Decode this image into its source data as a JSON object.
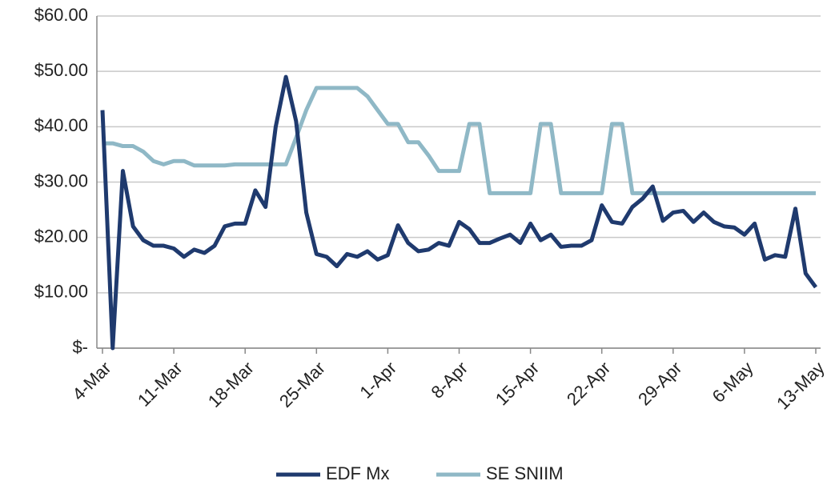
{
  "chart_data": {
    "type": "line",
    "categories": [
      "4-Mar",
      null,
      null,
      null,
      null,
      null,
      null,
      "11-Mar",
      null,
      null,
      null,
      null,
      null,
      null,
      "18-Mar",
      null,
      null,
      null,
      null,
      null,
      null,
      "25-Mar",
      null,
      null,
      null,
      null,
      null,
      null,
      "1-Apr",
      null,
      null,
      null,
      null,
      null,
      null,
      "8-Apr",
      null,
      null,
      null,
      null,
      null,
      null,
      "15-Apr",
      null,
      null,
      null,
      null,
      null,
      null,
      "22-Apr",
      null,
      null,
      null,
      null,
      null,
      null,
      "29-Apr",
      null,
      null,
      null,
      null,
      null,
      null,
      "6-May",
      null,
      null,
      null,
      null,
      null,
      null,
      "13-May"
    ],
    "series": [
      {
        "name": "EDF Mx",
        "color": "#1f3a6e",
        "values": [
          43,
          0,
          32,
          22,
          19.5,
          18.5,
          18.5,
          18,
          16.5,
          17.8,
          17.2,
          18.5,
          22,
          22.5,
          22.5,
          28.5,
          25.5,
          40,
          49,
          41,
          24.5,
          17,
          16.5,
          14.8,
          17,
          16.5,
          17.5,
          16,
          16.8,
          22.2,
          19,
          17.5,
          17.8,
          19,
          18.5,
          22.8,
          21.5,
          19,
          19,
          19.8,
          20.5,
          19,
          22.5,
          19.5,
          20.5,
          18.3,
          18.5,
          18.5,
          19.5,
          25.8,
          22.8,
          22.5,
          25.5,
          27,
          29.2,
          23,
          24.5,
          24.8,
          22.8,
          24.5,
          22.8,
          22,
          21.8,
          20.5,
          22.5,
          16,
          16.8,
          16.5,
          25.2,
          13.5,
          11
        ]
      },
      {
        "name": "SE SNIIM",
        "color": "#8fb8c6",
        "values": [
          37,
          37,
          36.5,
          36.5,
          35.5,
          33.8,
          33.2,
          33.8,
          33.8,
          33,
          33,
          33,
          33,
          33.2,
          33.2,
          33.2,
          33.2,
          33.2,
          33.2,
          38,
          43,
          47,
          47,
          47,
          47,
          47,
          45.5,
          43,
          40.5,
          40.5,
          37.2,
          37.2,
          34.8,
          32,
          32,
          32,
          40.5,
          40.5,
          28,
          28,
          28,
          28,
          28,
          40.5,
          40.5,
          28,
          28,
          28,
          28,
          28,
          40.5,
          40.5,
          28,
          28,
          28,
          28,
          28,
          28,
          28,
          28,
          28,
          28,
          28,
          28,
          28,
          28,
          28,
          28,
          28,
          28,
          28
        ]
      }
    ],
    "ylim": [
      0,
      60
    ],
    "yticks": [
      {
        "value": 0,
        "label": "$-"
      },
      {
        "value": 10,
        "label": "$10.00"
      },
      {
        "value": 20,
        "label": "$20.00"
      },
      {
        "value": 30,
        "label": "$30.00"
      },
      {
        "value": 40,
        "label": "$40.00"
      },
      {
        "value": 50,
        "label": "$50.00"
      },
      {
        "value": 60,
        "label": "$60.00"
      }
    ],
    "grid": true,
    "legend": "bottom"
  }
}
